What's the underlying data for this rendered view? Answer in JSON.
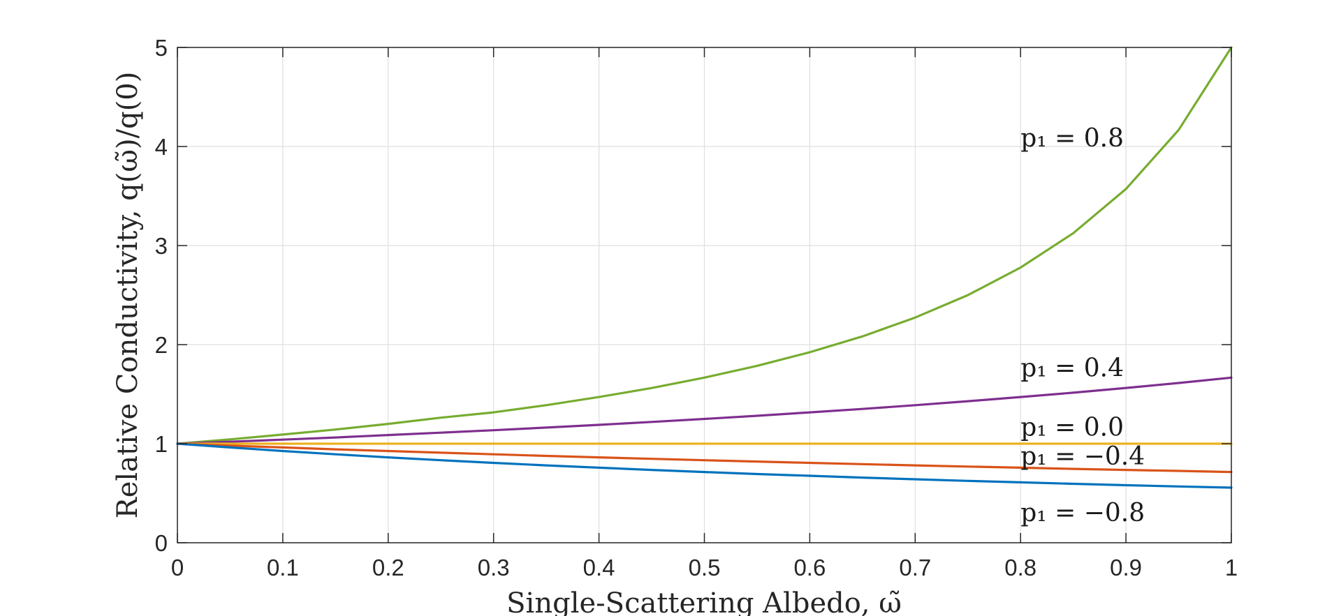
{
  "chart_data": {
    "type": "line",
    "xlabel": "Single-Scattering Albedo, ω̃",
    "ylabel": "Relative Conductivity, q(ω̃)/q(0)",
    "xlim": [
      0,
      1
    ],
    "ylim": [
      0,
      5
    ],
    "xticks": [
      "0",
      "0.1",
      "0.2",
      "0.3",
      "0.4",
      "0.5",
      "0.6",
      "0.7",
      "0.8",
      "0.9",
      "1"
    ],
    "yticks": [
      "0",
      "1",
      "2",
      "3",
      "4",
      "5"
    ],
    "grid": true,
    "x": [
      0,
      0.05,
      0.1,
      0.15,
      0.2,
      0.25,
      0.3,
      0.35,
      0.4,
      0.45,
      0.5,
      0.55,
      0.6,
      0.65,
      0.7,
      0.75,
      0.8,
      0.85,
      0.9,
      0.95,
      1.0
    ],
    "series": [
      {
        "name": "p₁ = 0.8",
        "color": "#77ac30",
        "values": [
          1.0,
          1.044,
          1.092,
          1.143,
          1.2,
          1.263,
          1.316,
          1.389,
          1.471,
          1.562,
          1.667,
          1.786,
          1.923,
          2.083,
          2.273,
          2.5,
          2.778,
          3.125,
          3.571,
          4.167,
          5.0
        ],
        "label_pos": [
          0.8,
          4.0
        ]
      },
      {
        "name": "p₁ = 0.4",
        "color": "#7e2f8e",
        "values": [
          1.0,
          1.02,
          1.041,
          1.063,
          1.087,
          1.111,
          1.136,
          1.163,
          1.19,
          1.22,
          1.25,
          1.282,
          1.316,
          1.351,
          1.389,
          1.429,
          1.471,
          1.515,
          1.563,
          1.613,
          1.667
        ],
        "label_pos": [
          0.8,
          1.68
        ]
      },
      {
        "name": "p₁ = 0.0",
        "color": "#edb120",
        "values": [
          1.0,
          1.0,
          1.0,
          1.0,
          1.0,
          1.0,
          1.0,
          1.0,
          1.0,
          1.0,
          1.0,
          1.0,
          1.0,
          1.0,
          1.0,
          1.0,
          1.0,
          1.0,
          1.0,
          1.0,
          1.0
        ],
        "label_pos": [
          0.8,
          1.08
        ]
      },
      {
        "name": "p₁ = −0.4",
        "color": "#d95319",
        "values": [
          1.0,
          0.98,
          0.962,
          0.943,
          0.926,
          0.909,
          0.893,
          0.877,
          0.862,
          0.847,
          0.833,
          0.82,
          0.806,
          0.794,
          0.781,
          0.769,
          0.758,
          0.746,
          0.735,
          0.725,
          0.714
        ],
        "label_pos": [
          0.8,
          0.79
        ]
      },
      {
        "name": "p₁ = −0.8",
        "color": "#0072bd",
        "values": [
          1.0,
          0.962,
          0.926,
          0.893,
          0.862,
          0.833,
          0.806,
          0.781,
          0.758,
          0.735,
          0.714,
          0.694,
          0.676,
          0.658,
          0.641,
          0.625,
          0.61,
          0.595,
          0.581,
          0.568,
          0.556
        ],
        "label_pos": [
          0.8,
          0.22
        ]
      }
    ]
  }
}
